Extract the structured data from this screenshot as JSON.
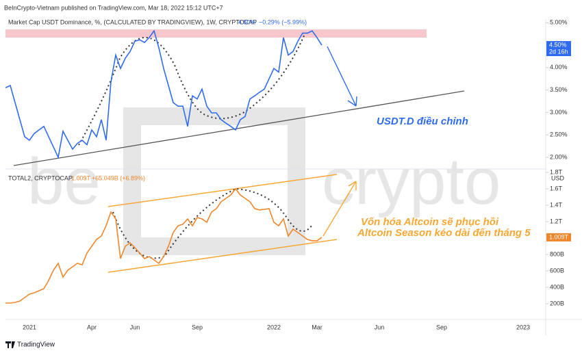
{
  "header": "BeInCrypto-Vietnam published on TradingView.com, Mar 18, 2022 15:12 UTC+7",
  "footer": "TradingView",
  "watermark_left": "be",
  "watermark_right": "crypto",
  "chart_data": [
    {
      "type": "line",
      "title": "Market Cap USDT Dominance, %, (CALCULATED BY TRADINGVIEW), 1W, CRYPTOCAP",
      "legend_value": "4.50%",
      "legend_change": "−0.29% (−5.99%)",
      "last_label": "4.50%",
      "countdown": "2d 16h",
      "annotation": "USDT.D điều chỉnh",
      "color": "#2f6bef",
      "ylim": [
        1.77,
        5.05
      ],
      "yticks": [
        {
          "value": 2,
          "label": "2.00%"
        },
        {
          "value": 2.5,
          "label": "2.50%"
        },
        {
          "value": 3,
          "label": "3.00%"
        },
        {
          "value": 3.5,
          "label": "3.50%"
        },
        {
          "value": 4,
          "label": "4.00%"
        },
        {
          "value": 5,
          "label": "5.00%"
        }
      ],
      "values": [
        3.55,
        3.6,
        3.22,
        2.84,
        2.46,
        2.38,
        2.53,
        2.61,
        2.69,
        2.46,
        2.23,
        2.0,
        2.58,
        2.38,
        2.18,
        2.31,
        2.38,
        2.28,
        2.61,
        2.46,
        2.84,
        2.38,
        3.68,
        4.28,
        3.98,
        4.21,
        4.36,
        4.59,
        4.62,
        4.56,
        4.67,
        4.82,
        4.44,
        3.98,
        3.6,
        3.22,
        3.14,
        3.14,
        2.69,
        3.37,
        3.3,
        3.52,
        3.14,
        2.99,
        2.99,
        2.84,
        2.76,
        2.69,
        2.61,
        2.84,
        2.91,
        3.3,
        3.37,
        3.45,
        3.52,
        3.75,
        3.98,
        3.9,
        4.67,
        4.28,
        4.36,
        4.59,
        4.77,
        4.77,
        4.82,
        4.67,
        4.5,
        null,
        null,
        null,
        null,
        null,
        null,
        null,
        null,
        null,
        null,
        null,
        null,
        null,
        null,
        null,
        null,
        null,
        null,
        null,
        null,
        null,
        null,
        null,
        null,
        null,
        null,
        null,
        null,
        null,
        null,
        null,
        null,
        null,
        null,
        null,
        null,
        null,
        null,
        null,
        null,
        null,
        null,
        null,
        null,
        null,
        null
      ]
    },
    {
      "type": "line",
      "title": "TOTAL2, CRYPTOCAP",
      "legend_value": "1.009T",
      "legend_change": "+65.049B (+6.89%)",
      "last_label": "1.009T",
      "currency": "USD",
      "annotation": [
        "Vốn hóa Altcoin sẽ phục hồi",
        "Altcoin Season kéo dài đến tháng 5"
      ],
      "color": "#f0862a",
      "ylim": [
        25,
        1833
      ],
      "yticks": [
        {
          "value": 200,
          "label": "200B"
        },
        {
          "value": 400,
          "label": "400B"
        },
        {
          "value": 600,
          "label": "600B"
        },
        {
          "value": 800,
          "label": "800B"
        },
        {
          "value": 1200,
          "label": "1.2T"
        },
        {
          "value": 1400,
          "label": "1.4T"
        },
        {
          "value": 1600,
          "label": "1.6T"
        },
        {
          "value": 1800,
          "label": "1.8T"
        }
      ],
      "categories": [
        null,
        null,
        null,
        null,
        null,
        "2021",
        null,
        null,
        null,
        null,
        null,
        null,
        null,
        null,
        null,
        null,
        null,
        null,
        "Apr",
        null,
        null,
        null,
        null,
        null,
        null,
        null,
        null,
        "Jun",
        null,
        null,
        null,
        null,
        null,
        null,
        null,
        null,
        null,
        null,
        null,
        null,
        "Sep",
        null,
        null,
        null,
        null,
        null,
        null,
        null,
        null,
        null,
        null,
        null,
        null,
        null,
        null,
        null,
        "2022",
        null,
        null,
        null,
        null,
        null,
        null,
        null,
        null,
        "Mar",
        null,
        null,
        null,
        null,
        null,
        null,
        null,
        null,
        null,
        null,
        null,
        null,
        "Jun",
        null,
        null,
        null,
        null,
        null,
        null,
        null,
        null,
        null,
        null,
        null,
        null,
        "Sep",
        null,
        null,
        null,
        null,
        null,
        null,
        null,
        null,
        null,
        null,
        null,
        null,
        null,
        null,
        null,
        null,
        "2023",
        null,
        null,
        null,
        null
      ],
      "values": [
        208,
        208,
        217,
        233,
        275,
        317,
        333,
        358,
        383,
        483,
        608,
        692,
        525,
        608,
        650,
        692,
        675,
        817,
        900,
        983,
        1025,
        1150,
        1317,
        1233,
        750,
        900,
        942,
        883,
        817,
        750,
        775,
        733,
        692,
        775,
        900,
        1067,
        1150,
        1167,
        1233,
        1150,
        1250,
        1233,
        1192,
        1317,
        1358,
        1442,
        1483,
        1525,
        1600,
        1525,
        1483,
        1442,
        1358,
        1342,
        1350,
        1358,
        1192,
        1150,
        1233,
        1025,
        1108,
        1067,
        1025,
        983,
        967,
        967,
        1009,
        null,
        null,
        null,
        null,
        null,
        null,
        null,
        null,
        null,
        null,
        null,
        null,
        null,
        null,
        null,
        null,
        null,
        null,
        null,
        null,
        null,
        null,
        null,
        null,
        null,
        null,
        null,
        null,
        null,
        null,
        null,
        null,
        null,
        null,
        null,
        null,
        null,
        null,
        null,
        null,
        null,
        null,
        null,
        null,
        null,
        null
      ]
    }
  ]
}
